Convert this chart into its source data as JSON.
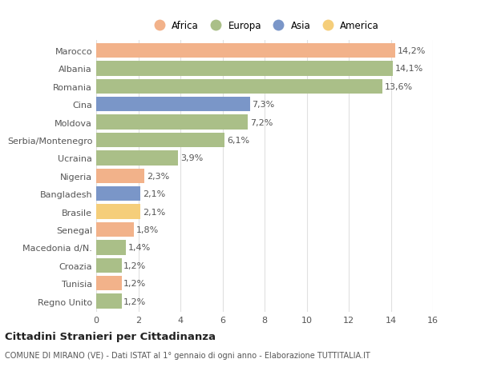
{
  "categories": [
    "Marocco",
    "Albania",
    "Romania",
    "Cina",
    "Moldova",
    "Serbia/Montenegro",
    "Ucraina",
    "Nigeria",
    "Bangladesh",
    "Brasile",
    "Senegal",
    "Macedonia d/N.",
    "Croazia",
    "Tunisia",
    "Regno Unito"
  ],
  "values": [
    14.2,
    14.1,
    13.6,
    7.3,
    7.2,
    6.1,
    3.9,
    2.3,
    2.1,
    2.1,
    1.8,
    1.4,
    1.2,
    1.2,
    1.2
  ],
  "labels": [
    "14,2%",
    "14,1%",
    "13,6%",
    "7,3%",
    "7,2%",
    "6,1%",
    "3,9%",
    "2,3%",
    "2,1%",
    "2,1%",
    "1,8%",
    "1,4%",
    "1,2%",
    "1,2%",
    "1,2%"
  ],
  "continents": [
    "Africa",
    "Europa",
    "Europa",
    "Asia",
    "Europa",
    "Europa",
    "Europa",
    "Africa",
    "Asia",
    "America",
    "Africa",
    "Europa",
    "Europa",
    "Africa",
    "Europa"
  ],
  "colors": {
    "Africa": "#F2B28A",
    "Europa": "#AABF88",
    "Asia": "#7A96C8",
    "America": "#F5CE7A"
  },
  "legend_order": [
    "Africa",
    "Europa",
    "Asia",
    "America"
  ],
  "title": "Cittadini Stranieri per Cittadinanza",
  "subtitle": "COMUNE DI MIRANO (VE) - Dati ISTAT al 1° gennaio di ogni anno - Elaborazione TUTTITALIA.IT",
  "xlim": [
    0,
    16
  ],
  "xticks": [
    0,
    2,
    4,
    6,
    8,
    10,
    12,
    14,
    16
  ],
  "background_color": "#ffffff",
  "grid_color": "#e0e0e0"
}
